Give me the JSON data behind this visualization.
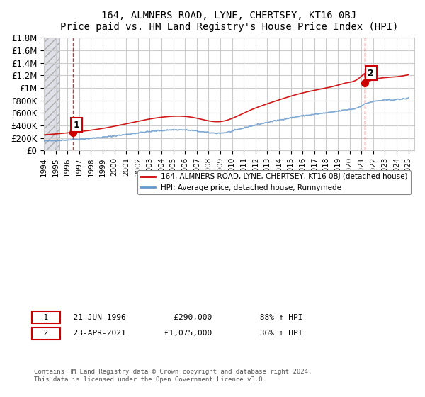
{
  "title": "164, ALMNERS ROAD, LYNE, CHERTSEY, KT16 0BJ",
  "subtitle": "Price paid vs. HM Land Registry's House Price Index (HPI)",
  "ylabel_ticks": [
    "£0",
    "£200K",
    "£400K",
    "£600K",
    "£800K",
    "£1M",
    "£1.2M",
    "£1.4M",
    "£1.6M",
    "£1.8M"
  ],
  "ylabel_values": [
    0,
    200000,
    400000,
    600000,
    800000,
    1000000,
    1200000,
    1400000,
    1600000,
    1800000
  ],
  "ylim": [
    0,
    1800000
  ],
  "xlim_start": 1994.0,
  "xlim_end": 2025.5,
  "sale1_year": 1996.47,
  "sale1_price": 290000,
  "sale1_label": "1",
  "sale1_date": "21-JUN-1996",
  "sale1_hpi_pct": "88% ↑ HPI",
  "sale2_year": 2021.31,
  "sale2_price": 1075000,
  "sale2_label": "2",
  "sale2_date": "23-APR-2021",
  "sale2_hpi_pct": "36% ↑ HPI",
  "line1_color": "#cc0000",
  "line2_color": "#6699cc",
  "marker_color": "#cc0000",
  "dashed_line_color": "#cc0000",
  "grid_color": "#cccccc",
  "hatched_bg_color": "#e8e8f0",
  "legend1_label": "164, ALMNERS ROAD, LYNE, CHERTSEY, KT16 0BJ (detached house)",
  "legend2_label": "HPI: Average price, detached house, Runnymede",
  "footer": "Contains HM Land Registry data © Crown copyright and database right 2024.\nThis data is licensed under the Open Government Licence v3.0.",
  "xtick_years": [
    1994,
    1995,
    1996,
    1997,
    1998,
    1999,
    2000,
    2001,
    2002,
    2003,
    2004,
    2005,
    2006,
    2007,
    2008,
    2009,
    2010,
    2011,
    2012,
    2013,
    2014,
    2015,
    2016,
    2017,
    2018,
    2019,
    2020,
    2021,
    2022,
    2023,
    2024,
    2025
  ]
}
